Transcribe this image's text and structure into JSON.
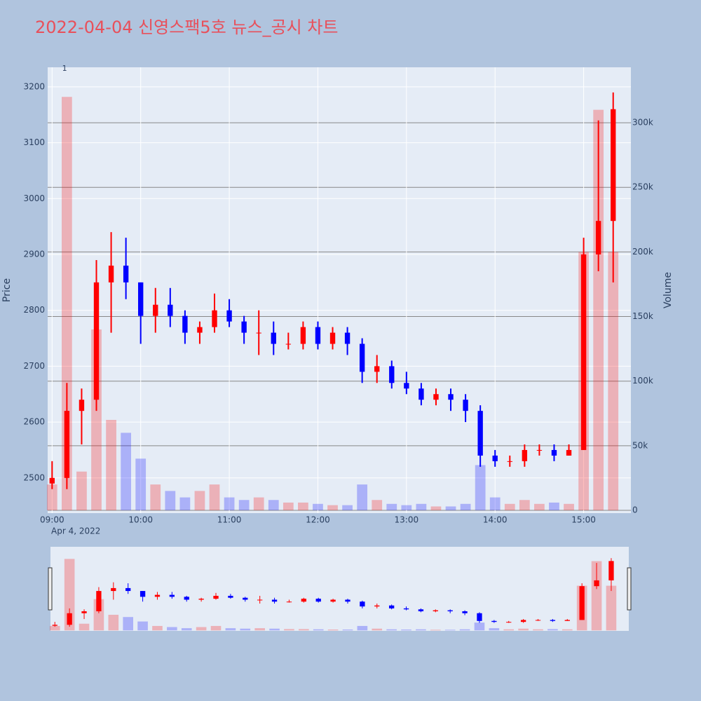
{
  "chart_data": {
    "type": "candlestick",
    "title": "2022-04-04 신영스팩5호 뉴스_공시 차트",
    "x": [
      "09:00",
      "09:10",
      "09:20",
      "09:30",
      "09:40",
      "09:50",
      "10:00",
      "10:10",
      "10:20",
      "10:30",
      "10:40",
      "10:50",
      "11:00",
      "11:10",
      "11:20",
      "11:30",
      "11:40",
      "11:50",
      "12:00",
      "12:10",
      "12:20",
      "12:30",
      "12:40",
      "12:50",
      "13:00",
      "13:10",
      "13:20",
      "13:30",
      "13:40",
      "13:50",
      "14:00",
      "14:10",
      "14:20",
      "14:30",
      "14:40",
      "14:50",
      "15:00",
      "15:10",
      "15:20"
    ],
    "open": [
      2490,
      2500,
      2620,
      2640,
      2850,
      2880,
      2850,
      2790,
      2810,
      2790,
      2760,
      2770,
      2800,
      2780,
      2760,
      2760,
      2740,
      2740,
      2770,
      2740,
      2760,
      2740,
      2690,
      2700,
      2670,
      2660,
      2640,
      2650,
      2640,
      2620,
      2540,
      2530,
      2530,
      2550,
      2550,
      2540,
      2550,
      2900,
      2960
    ],
    "high": [
      2530,
      2670,
      2660,
      2890,
      2940,
      2930,
      2850,
      2840,
      2840,
      2800,
      2780,
      2830,
      2820,
      2790,
      2800,
      2780,
      2760,
      2780,
      2780,
      2770,
      2770,
      2750,
      2720,
      2710,
      2690,
      2670,
      2660,
      2660,
      2650,
      2630,
      2550,
      2540,
      2560,
      2560,
      2560,
      2560,
      2930,
      3140,
      3190
    ],
    "low": [
      2480,
      2480,
      2560,
      2620,
      2760,
      2820,
      2740,
      2760,
      2770,
      2740,
      2740,
      2760,
      2770,
      2740,
      2720,
      2720,
      2730,
      2730,
      2730,
      2730,
      2720,
      2670,
      2670,
      2660,
      2650,
      2630,
      2630,
      2620,
      2600,
      2520,
      2520,
      2520,
      2520,
      2540,
      2530,
      2540,
      2550,
      2870,
      2850
    ],
    "close": [
      2500,
      2620,
      2640,
      2850,
      2880,
      2850,
      2790,
      2810,
      2790,
      2760,
      2770,
      2800,
      2780,
      2760,
      2760,
      2740,
      2740,
      2770,
      2740,
      2760,
      2740,
      2690,
      2700,
      2670,
      2660,
      2640,
      2650,
      2640,
      2620,
      2540,
      2530,
      2530,
      2550,
      2550,
      2540,
      2550,
      2900,
      2960,
      3160
    ],
    "volume": [
      20000,
      320000,
      30000,
      140000,
      70000,
      60000,
      40000,
      20000,
      15000,
      10000,
      15000,
      20000,
      10000,
      8000,
      10000,
      8000,
      6000,
      6000,
      5000,
      4000,
      4000,
      20000,
      8000,
      5000,
      4000,
      5000,
      3000,
      3000,
      5000,
      35000,
      10000,
      5000,
      8000,
      5000,
      6000,
      5000,
      200000,
      310000,
      200000
    ],
    "increasing_color": "#ff0000",
    "decreasing_color": "#0000ff",
    "xlim": [
      "08:57",
      "15:32"
    ],
    "xticks": [
      "09:00",
      "10:00",
      "11:00",
      "12:00",
      "13:00",
      "14:00",
      "15:00"
    ],
    "date_label": "Apr 4, 2022",
    "ylim": [
      2437,
      3235
    ],
    "yticks": [
      2500,
      2600,
      2700,
      2800,
      2900,
      3000,
      3100,
      3200
    ],
    "y2lim": [
      -2170,
      342900
    ],
    "y2ticks": [
      0,
      {
        "value": 50000,
        "label": "50k"
      },
      {
        "value": 100000,
        "label": "100k"
      },
      {
        "value": 150000,
        "label": "150k"
      },
      {
        "value": 200000,
        "label": "200k"
      },
      {
        "value": 250000,
        "label": "250k"
      },
      {
        "value": 300000,
        "label": "300k"
      }
    ],
    "y_label": "Price",
    "y2_label": "Volume",
    "annotations": [
      {
        "text": "1",
        "x": "09:10"
      }
    ],
    "grid": true
  }
}
